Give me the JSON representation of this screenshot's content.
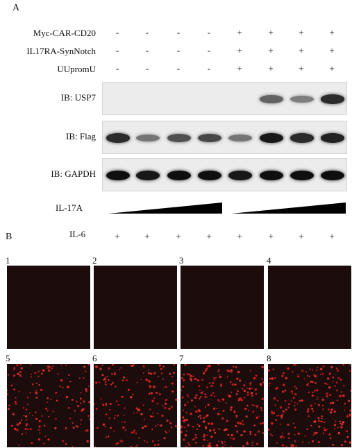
{
  "panel_a_label": "A",
  "panel_b_label": "B",
  "conditions": [
    {
      "label": "Myc-CAR-CD20",
      "values": [
        "-",
        "-",
        "-",
        "-",
        "+",
        "+",
        "+",
        "+"
      ]
    },
    {
      "label": "IL17RA-SynNotch",
      "values": [
        "-",
        "-",
        "-",
        "-",
        "+",
        "+",
        "+",
        "+"
      ]
    },
    {
      "label": "UUpromU",
      "values": [
        "-",
        "-",
        "-",
        "-",
        "+",
        "+",
        "+",
        "+"
      ]
    }
  ],
  "blots": [
    {
      "label": "IB: USP7",
      "intensity": [
        0,
        0,
        0,
        0,
        0,
        0.55,
        0.4,
        0.85
      ]
    },
    {
      "label": "IB: Flag",
      "intensity": [
        0.85,
        0.45,
        0.65,
        0.7,
        0.45,
        0.95,
        0.85,
        0.9
      ]
    },
    {
      "label": "IB: GAPDH",
      "intensity": [
        1,
        0.95,
        1,
        1,
        0.95,
        1,
        1,
        1
      ]
    }
  ],
  "il17a": {
    "label": "IL-17A"
  },
  "il6": {
    "label": "IL-6",
    "values": [
      "+",
      "+",
      "+",
      "+",
      "+",
      "+",
      "+",
      "+"
    ]
  },
  "micrographs": [
    {
      "number": "1",
      "cell_density": 0
    },
    {
      "number": "2",
      "cell_density": 0
    },
    {
      "number": "3",
      "cell_density": 0
    },
    {
      "number": "4",
      "cell_density": 0
    },
    {
      "number": "5",
      "cell_density": 0.55
    },
    {
      "number": "6",
      "cell_density": 0.6
    },
    {
      "number": "7",
      "cell_density": 0.9
    },
    {
      "number": "8",
      "cell_density": 0.8
    }
  ]
}
